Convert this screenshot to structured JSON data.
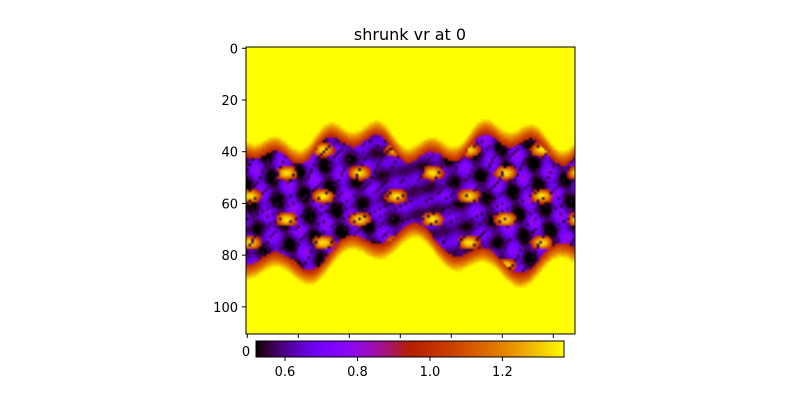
{
  "chart_data": {
    "type": "heatmap",
    "title": "shrunk vr at 0",
    "colormap": "gnuplot",
    "image": {
      "y_ticks": [
        "0",
        "20",
        "40",
        "60",
        "80",
        "100"
      ],
      "y_tick_values": [
        0,
        20,
        40,
        60,
        80,
        100
      ],
      "y_range": [
        -0.5,
        110.5
      ],
      "x_ticks_visible": [
        "0"
      ],
      "x_range": [
        -0.5,
        128.5
      ],
      "background_value": 1.37,
      "band": {
        "description_rows": "high-value (yellow) above row ~33 and below row ~85; low-value band (black/purple) centered between rows ~42 and ~75",
        "min_value": 0.52,
        "max_value": 1.37
      }
    },
    "colorbar": {
      "orientation": "horizontal",
      "range": [
        0.52,
        1.37
      ],
      "ticks": [
        "0.6",
        "0.8",
        "1.0",
        "1.2"
      ],
      "tick_values": [
        0.6,
        0.8,
        1.0,
        1.2
      ]
    }
  }
}
